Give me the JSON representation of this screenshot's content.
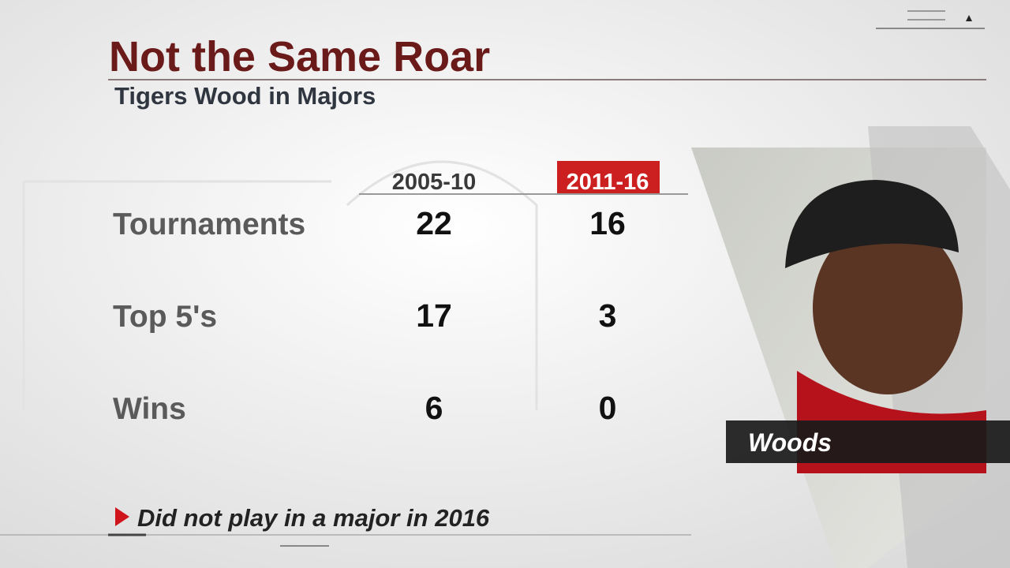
{
  "header": {
    "title": "Not the Same Roar",
    "subtitle": "Tigers Wood in Majors"
  },
  "table": {
    "columns": [
      "2005-10",
      "2011-16"
    ],
    "rows": [
      [
        "Tournaments",
        22,
        16
      ],
      [
        "Top 5's",
        17,
        3
      ],
      [
        "Wins",
        6,
        0
      ]
    ]
  },
  "photo": {
    "caption": "Woods"
  },
  "footnote": "Did not play in a major in 2016"
}
